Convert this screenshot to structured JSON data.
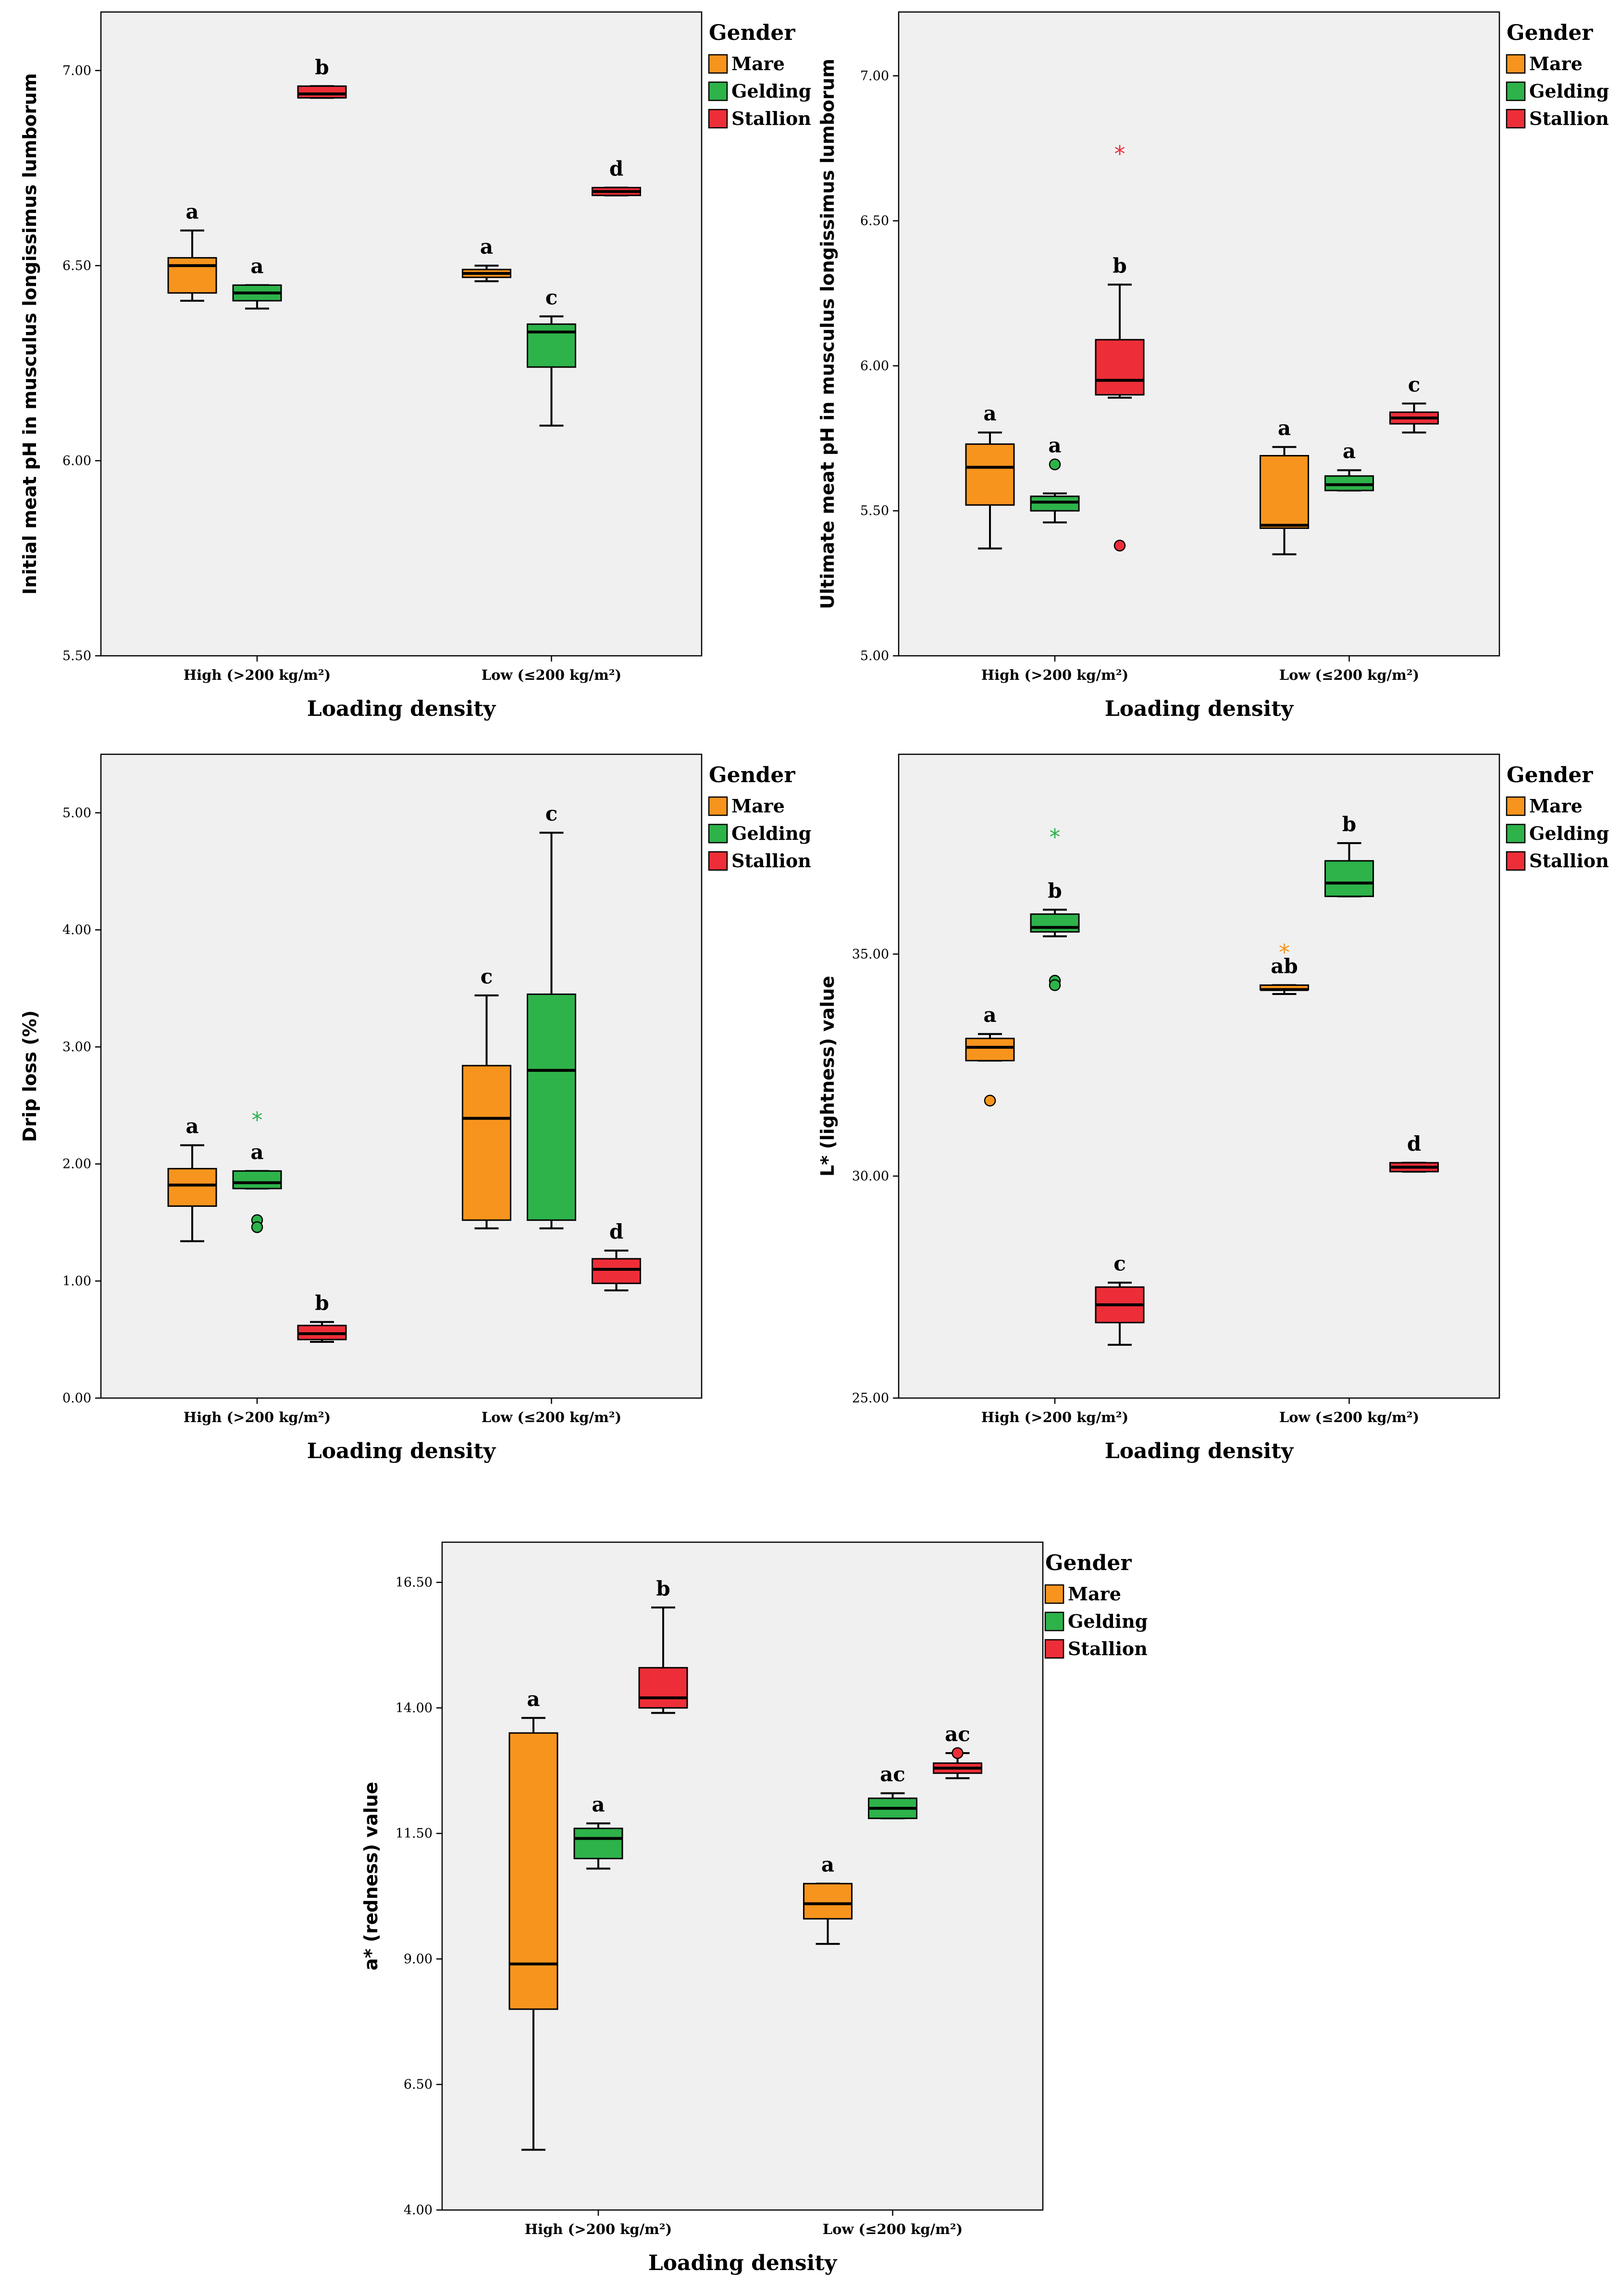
{
  "legend": {
    "title": "Gender",
    "items": [
      {
        "label": "Mare",
        "color": "#F7941D"
      },
      {
        "label": "Gelding",
        "color": "#2DB34A"
      },
      {
        "label": "Stallion",
        "color": "#ED2E38"
      }
    ]
  },
  "chart_data": [
    {
      "type": "boxplot",
      "ylabel": "Initial meat pH in musculus longissimus lumborum",
      "xlabel": "Loading density",
      "categories": [
        "High (>200 kg/m²)",
        "Low (≤200 kg/m²)"
      ],
      "ylim": [
        5.5,
        7.15
      ],
      "yticks": [
        "5.50",
        "6.00",
        "6.50",
        "7.00"
      ],
      "yticks_values": [
        5.5,
        6.0,
        6.5,
        7.0
      ],
      "boxes": [
        {
          "cat": 0,
          "group": 0,
          "min": 6.41,
          "q1": 6.43,
          "median": 6.5,
          "q3": 6.52,
          "max": 6.59,
          "letter": "a"
        },
        {
          "cat": 0,
          "group": 1,
          "min": 6.39,
          "q1": 6.41,
          "median": 6.43,
          "q3": 6.45,
          "max": 6.45,
          "letter": "a"
        },
        {
          "cat": 0,
          "group": 2,
          "min": 6.93,
          "q1": 6.93,
          "median": 6.94,
          "q3": 6.96,
          "max": 6.96,
          "letter": "b"
        },
        {
          "cat": 1,
          "group": 0,
          "min": 6.46,
          "q1": 6.47,
          "median": 6.48,
          "q3": 6.49,
          "max": 6.5,
          "letter": "a"
        },
        {
          "cat": 1,
          "group": 1,
          "min": 6.09,
          "q1": 6.24,
          "median": 6.33,
          "q3": 6.35,
          "max": 6.37,
          "letter": "c"
        },
        {
          "cat": 1,
          "group": 2,
          "min": 6.68,
          "q1": 6.68,
          "median": 6.69,
          "q3": 6.7,
          "max": 6.7,
          "letter": "d"
        }
      ],
      "outliers": []
    },
    {
      "type": "boxplot",
      "ylabel": "Ultimate meat pH in musculus longissimus lumborum",
      "xlabel": "Loading density",
      "categories": [
        "High (>200 kg/m²)",
        "Low (≤200 kg/m²)"
      ],
      "ylim": [
        5.0,
        7.22
      ],
      "yticks": [
        "5.00",
        "5.50",
        "6.00",
        "6.50",
        "7.00"
      ],
      "yticks_values": [
        5.0,
        5.5,
        6.0,
        6.5,
        7.0
      ],
      "boxes": [
        {
          "cat": 0,
          "group": 0,
          "min": 5.37,
          "q1": 5.52,
          "median": 5.65,
          "q3": 5.73,
          "max": 5.77,
          "letter": "a"
        },
        {
          "cat": 0,
          "group": 1,
          "min": 5.46,
          "q1": 5.5,
          "median": 5.53,
          "q3": 5.55,
          "max": 5.56,
          "letter": "a"
        },
        {
          "cat": 0,
          "group": 2,
          "min": 5.89,
          "q1": 5.9,
          "median": 5.95,
          "q3": 6.09,
          "max": 6.28,
          "letter": "b"
        },
        {
          "cat": 1,
          "group": 0,
          "min": 5.35,
          "q1": 5.44,
          "median": 5.45,
          "q3": 5.69,
          "max": 5.72,
          "letter": "a"
        },
        {
          "cat": 1,
          "group": 1,
          "min": 5.57,
          "q1": 5.57,
          "median": 5.59,
          "q3": 5.62,
          "max": 5.64,
          "letter": "a"
        },
        {
          "cat": 1,
          "group": 2,
          "min": 5.77,
          "q1": 5.8,
          "median": 5.82,
          "q3": 5.84,
          "max": 5.87,
          "letter": "c"
        }
      ],
      "outliers": [
        {
          "cat": 0,
          "group": 1,
          "value": 5.66,
          "kind": "circle"
        },
        {
          "cat": 0,
          "group": 2,
          "value": 5.38,
          "kind": "circle"
        },
        {
          "cat": 0,
          "group": 2,
          "value": 6.74,
          "kind": "star"
        }
      ]
    },
    {
      "type": "boxplot",
      "ylabel": "Drip loss (%)",
      "xlabel": "Loading density",
      "categories": [
        "High (>200 kg/m²)",
        "Low (≤200 kg/m²)"
      ],
      "ylim": [
        0.0,
        5.5
      ],
      "yticks": [
        "0.00",
        "1.00",
        "2.00",
        "3.00",
        "4.00",
        "5.00"
      ],
      "yticks_values": [
        0,
        1,
        2,
        3,
        4,
        5
      ],
      "boxes": [
        {
          "cat": 0,
          "group": 0,
          "min": 1.34,
          "q1": 1.64,
          "median": 1.82,
          "q3": 1.96,
          "max": 2.16,
          "letter": "a"
        },
        {
          "cat": 0,
          "group": 1,
          "min": 1.79,
          "q1": 1.79,
          "median": 1.84,
          "q3": 1.94,
          "max": 1.94,
          "letter": "a"
        },
        {
          "cat": 0,
          "group": 2,
          "min": 0.48,
          "q1": 0.5,
          "median": 0.55,
          "q3": 0.62,
          "max": 0.65,
          "letter": "b"
        },
        {
          "cat": 1,
          "group": 0,
          "min": 1.45,
          "q1": 1.52,
          "median": 2.39,
          "q3": 2.84,
          "max": 3.44,
          "letter": "c"
        },
        {
          "cat": 1,
          "group": 1,
          "min": 1.45,
          "q1": 1.52,
          "median": 2.8,
          "q3": 3.45,
          "max": 4.83,
          "letter": "c"
        },
        {
          "cat": 1,
          "group": 2,
          "min": 0.92,
          "q1": 0.98,
          "median": 1.1,
          "q3": 1.19,
          "max": 1.26,
          "letter": "d"
        }
      ],
      "outliers": [
        {
          "cat": 0,
          "group": 1,
          "value": 1.52,
          "kind": "circle"
        },
        {
          "cat": 0,
          "group": 1,
          "value": 1.46,
          "kind": "circle"
        },
        {
          "cat": 0,
          "group": 1,
          "value": 2.4,
          "kind": "star"
        }
      ]
    },
    {
      "type": "boxplot",
      "ylabel": "L* (lightness) value",
      "xlabel": "Loading density",
      "categories": [
        "High (>200 kg/m²)",
        "Low (≤200 kg/m²)"
      ],
      "ylim": [
        25.0,
        39.5
      ],
      "yticks": [
        "25.00",
        "30.00",
        "35.00"
      ],
      "yticks_values": [
        25,
        30,
        35
      ],
      "boxes": [
        {
          "cat": 0,
          "group": 0,
          "min": 32.6,
          "q1": 32.6,
          "median": 32.9,
          "q3": 33.1,
          "max": 33.2,
          "letter": "a"
        },
        {
          "cat": 0,
          "group": 1,
          "min": 35.4,
          "q1": 35.5,
          "median": 35.6,
          "q3": 35.9,
          "max": 36.0,
          "letter": "b"
        },
        {
          "cat": 0,
          "group": 2,
          "min": 26.2,
          "q1": 26.7,
          "median": 27.1,
          "q3": 27.5,
          "max": 27.6,
          "letter": "c"
        },
        {
          "cat": 1,
          "group": 0,
          "min": 34.1,
          "q1": 34.2,
          "median": 34.2,
          "q3": 34.3,
          "max": 34.3,
          "letter": "ab"
        },
        {
          "cat": 1,
          "group": 1,
          "min": 36.3,
          "q1": 36.3,
          "median": 36.6,
          "q3": 37.1,
          "max": 37.5,
          "letter": "b"
        },
        {
          "cat": 1,
          "group": 2,
          "min": 30.1,
          "q1": 30.1,
          "median": 30.2,
          "q3": 30.3,
          "max": 30.3,
          "letter": "d"
        }
      ],
      "outliers": [
        {
          "cat": 0,
          "group": 0,
          "value": 31.7,
          "kind": "circle"
        },
        {
          "cat": 0,
          "group": 1,
          "value": 34.4,
          "kind": "circle"
        },
        {
          "cat": 0,
          "group": 1,
          "value": 34.3,
          "kind": "circle"
        },
        {
          "cat": 0,
          "group": 1,
          "value": 37.7,
          "kind": "star"
        },
        {
          "cat": 1,
          "group": 0,
          "value": 35.1,
          "kind": "star"
        }
      ]
    },
    {
      "type": "boxplot",
      "ylabel": "a* (redness) value",
      "xlabel": "Loading density",
      "categories": [
        "High (>200 kg/m²)",
        "Low (≤200 kg/m²)"
      ],
      "ylim": [
        4.0,
        17.3
      ],
      "yticks": [
        "4.00",
        "6.50",
        "9.00",
        "11.50",
        "14.00",
        "16.50"
      ],
      "yticks_values": [
        4.0,
        6.5,
        9.0,
        11.5,
        14.0,
        16.5
      ],
      "boxes": [
        {
          "cat": 0,
          "group": 0,
          "min": 5.2,
          "q1": 8.0,
          "median": 8.9,
          "q3": 13.5,
          "max": 13.8,
          "letter": "a"
        },
        {
          "cat": 0,
          "group": 1,
          "min": 10.8,
          "q1": 11.0,
          "median": 11.4,
          "q3": 11.6,
          "max": 11.7,
          "letter": "a"
        },
        {
          "cat": 0,
          "group": 2,
          "min": 13.9,
          "q1": 14.0,
          "median": 14.2,
          "q3": 14.8,
          "max": 16.0,
          "letter": "b"
        },
        {
          "cat": 1,
          "group": 0,
          "min": 9.3,
          "q1": 9.8,
          "median": 10.1,
          "q3": 10.5,
          "max": 10.5,
          "letter": "a"
        },
        {
          "cat": 1,
          "group": 1,
          "min": 11.8,
          "q1": 11.8,
          "median": 12.0,
          "q3": 12.2,
          "max": 12.3,
          "letter": "ac"
        },
        {
          "cat": 1,
          "group": 2,
          "min": 12.6,
          "q1": 12.7,
          "median": 12.8,
          "q3": 12.9,
          "max": 13.1,
          "letter": "ac"
        }
      ],
      "outliers": [
        {
          "cat": 1,
          "group": 2,
          "value": 13.1,
          "kind": "circle"
        }
      ]
    }
  ]
}
